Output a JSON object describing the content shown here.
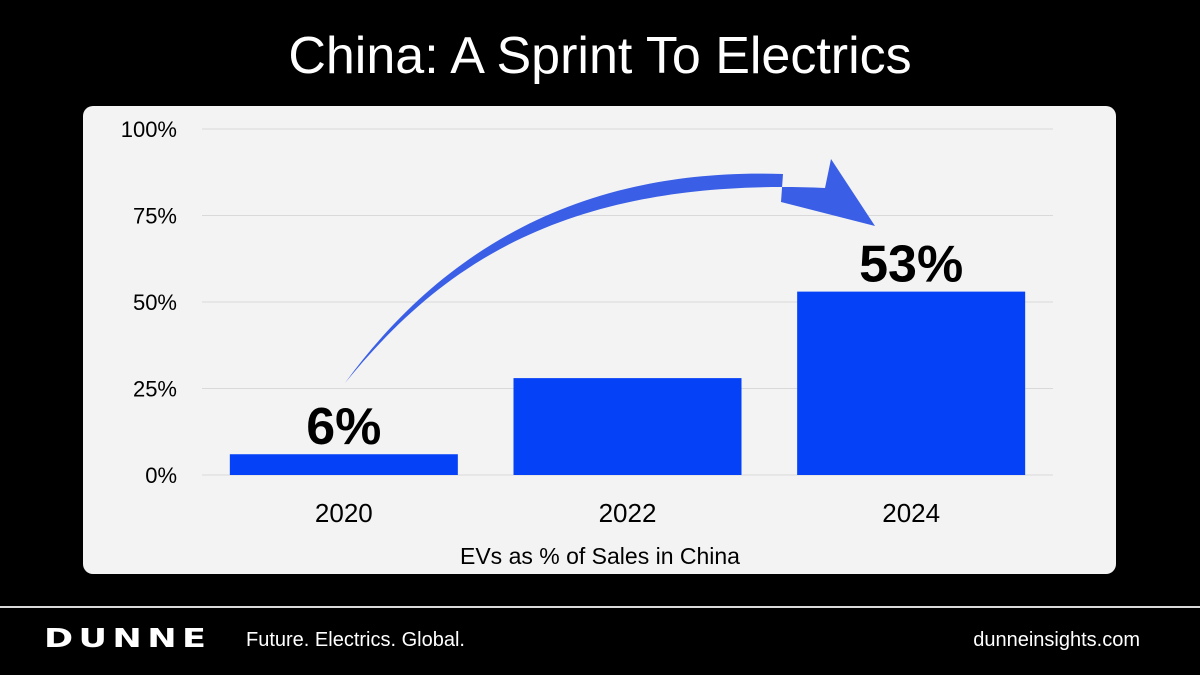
{
  "slide": {
    "title": "China: A Sprint To Electrics"
  },
  "chart_data": {
    "type": "bar",
    "categories": [
      "2020",
      "2022",
      "2024"
    ],
    "values": [
      6,
      28,
      53
    ],
    "ylim": [
      0,
      100
    ],
    "yticks": [
      0,
      25,
      50,
      75,
      100
    ],
    "ytick_labels": [
      "0%",
      "25%",
      "50%",
      "75%",
      "100%"
    ],
    "xlabel": "EVs as % of Sales in China",
    "ylabel": "",
    "grid": true,
    "data_labels": [
      {
        "category": "2020",
        "text": "6%"
      },
      {
        "category": "2024",
        "text": "53%"
      }
    ],
    "annotation": {
      "type": "arrow",
      "from": "2020",
      "to": "2024"
    },
    "colors": {
      "bar": "#0441f7",
      "arrow": "#3a5fe6",
      "grid": "#d9d9d9",
      "panel": "#f3f3f3"
    }
  },
  "footer": {
    "brand": "DUNNE",
    "tagline": "Future. Electrics. Global.",
    "website": "dunneinsights.com"
  }
}
